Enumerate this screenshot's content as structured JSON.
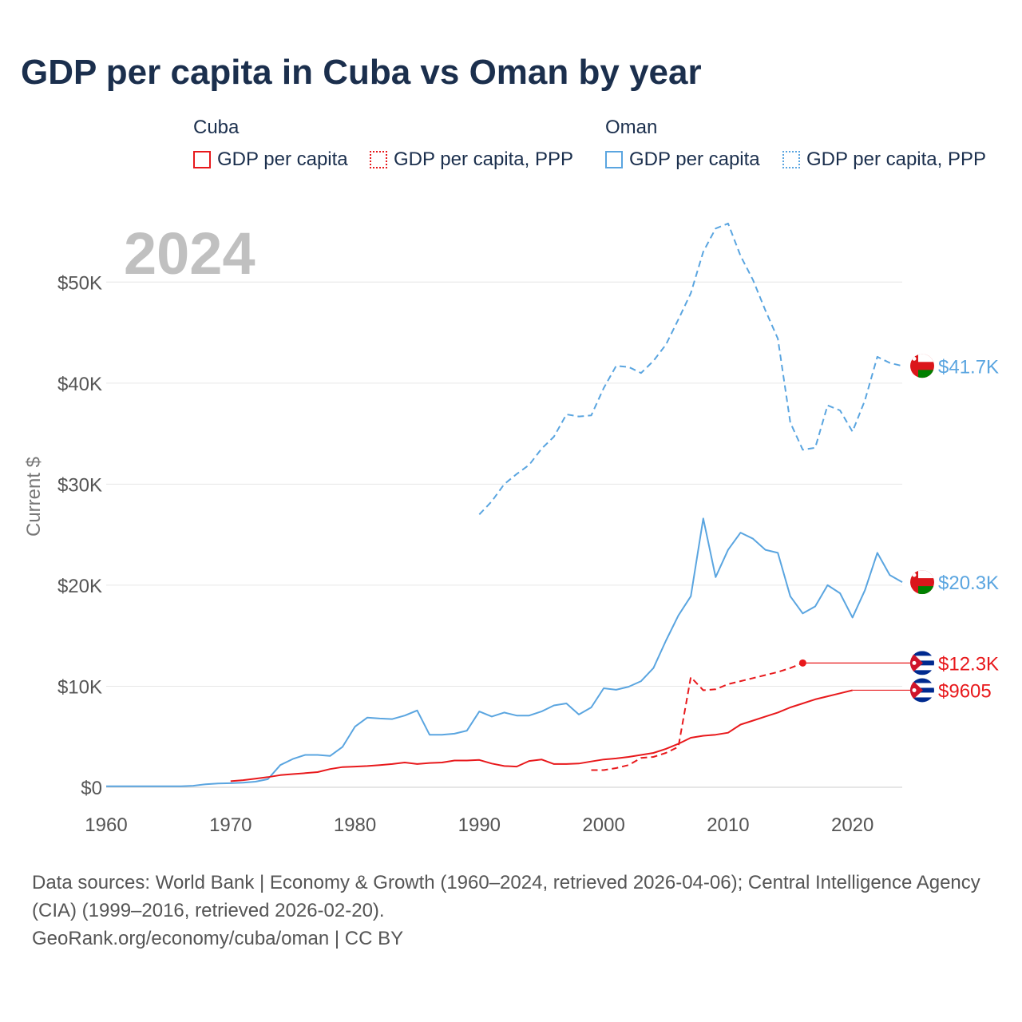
{
  "title": "GDP per capita in Cuba vs Oman by year",
  "legend": {
    "cuba_title": "Cuba",
    "oman_title": "Oman",
    "items": [
      {
        "label": "GDP per capita",
        "color": "#e8191c",
        "style": "solid"
      },
      {
        "label": "GDP per capita, PPP",
        "color": "#e8191c",
        "style": "dotted"
      },
      {
        "label": "GDP per capita",
        "color": "#5aa5e0",
        "style": "solid"
      },
      {
        "label": "GDP per capita, PPP",
        "color": "#5aa5e0",
        "style": "dotted"
      }
    ]
  },
  "chart_data": {
    "type": "line",
    "title": "GDP per capita in Cuba vs Oman by year",
    "year_label": "2024",
    "ylabel": "Current $",
    "xlim": [
      1960,
      2024
    ],
    "ylim": [
      0,
      55000
    ],
    "x_ticks": [
      1960,
      1970,
      1980,
      1990,
      2000,
      2010,
      2020
    ],
    "y_ticks": [
      {
        "value": 0,
        "label": "$0"
      },
      {
        "value": 10000,
        "label": "$10K"
      },
      {
        "value": 20000,
        "label": "$20K"
      },
      {
        "value": 30000,
        "label": "$30K"
      },
      {
        "value": 40000,
        "label": "$40K"
      },
      {
        "value": 50000,
        "label": "$50K"
      }
    ],
    "series": [
      {
        "name": "Oman GDP per capita, PPP",
        "country": "Oman",
        "color": "#5aa5e0",
        "dashed": true,
        "end_label": "$41.7K",
        "x": [
          1990,
          1991,
          1992,
          1993,
          1994,
          1995,
          1996,
          1997,
          1998,
          1999,
          2000,
          2001,
          2002,
          2003,
          2004,
          2005,
          2006,
          2007,
          2008,
          2009,
          2010,
          2011,
          2012,
          2013,
          2014,
          2015,
          2016,
          2017,
          2018,
          2019,
          2020,
          2021,
          2022,
          2023,
          2024
        ],
        "values": [
          27000,
          28300,
          30000,
          31000,
          31900,
          33500,
          34700,
          36900,
          36700,
          36800,
          39500,
          41700,
          41600,
          41000,
          42200,
          43800,
          46300,
          48900,
          53000,
          55300,
          55800,
          52600,
          50200,
          47200,
          44400,
          36100,
          33400,
          33600,
          37800,
          37300,
          35200,
          38300,
          42600,
          42000,
          41700
        ]
      },
      {
        "name": "Oman GDP per capita",
        "country": "Oman",
        "color": "#5aa5e0",
        "dashed": false,
        "end_label": "$20.3K",
        "x": [
          1960,
          1961,
          1962,
          1963,
          1964,
          1965,
          1966,
          1967,
          1968,
          1969,
          1970,
          1971,
          1972,
          1973,
          1974,
          1975,
          1976,
          1977,
          1978,
          1979,
          1980,
          1981,
          1982,
          1983,
          1984,
          1985,
          1986,
          1987,
          1988,
          1989,
          1990,
          1991,
          1992,
          1993,
          1994,
          1995,
          1996,
          1997,
          1998,
          1999,
          2000,
          2001,
          2002,
          2003,
          2004,
          2005,
          2006,
          2007,
          2008,
          2009,
          2010,
          2011,
          2012,
          2013,
          2014,
          2015,
          2016,
          2017,
          2018,
          2019,
          2020,
          2021,
          2022,
          2023,
          2024
        ],
        "values": [
          100,
          100,
          100,
          100,
          100,
          100,
          100,
          150,
          300,
          380,
          400,
          450,
          550,
          800,
          2200,
          2800,
          3200,
          3200,
          3100,
          4000,
          6000,
          6900,
          6800,
          6750,
          7100,
          7600,
          5200,
          5200,
          5300,
          5600,
          7500,
          7000,
          7400,
          7100,
          7100,
          7500,
          8100,
          8300,
          7200,
          7900,
          9800,
          9650,
          9950,
          10500,
          11800,
          14500,
          17000,
          18900,
          26600,
          20800,
          23500,
          25200,
          24600,
          23500,
          23200,
          18900,
          17200,
          17900,
          20000,
          19200,
          16800,
          19500,
          23200,
          21000,
          20300
        ]
      },
      {
        "name": "Cuba GDP per capita, PPP",
        "country": "Cuba",
        "color": "#e8191c",
        "dashed": true,
        "end_label": "$12.3K",
        "x": [
          1999,
          2000,
          2001,
          2002,
          2003,
          2004,
          2005,
          2006,
          2007,
          2008,
          2009,
          2010,
          2011,
          2012,
          2013,
          2014,
          2015,
          2016
        ],
        "values": [
          1700,
          1700,
          1900,
          2200,
          2900,
          3000,
          3400,
          4000,
          10900,
          9600,
          9700,
          10200,
          10500,
          10800,
          11100,
          11400,
          11800,
          12300
        ],
        "marker_last": true
      },
      {
        "name": "Cuba GDP per capita",
        "country": "Cuba",
        "color": "#e8191c",
        "dashed": false,
        "end_label": "$9605",
        "x": [
          1970,
          1971,
          1972,
          1973,
          1974,
          1975,
          1976,
          1977,
          1978,
          1979,
          1980,
          1981,
          1982,
          1983,
          1984,
          1985,
          1986,
          1987,
          1988,
          1989,
          1990,
          1991,
          1992,
          1993,
          1994,
          1995,
          1996,
          1997,
          1998,
          1999,
          2000,
          2001,
          2002,
          2003,
          2004,
          2005,
          2006,
          2007,
          2008,
          2009,
          2010,
          2011,
          2012,
          2013,
          2014,
          2015,
          2016,
          2017,
          2018,
          2019,
          2020
        ],
        "values": [
          600,
          700,
          850,
          1000,
          1200,
          1300,
          1400,
          1500,
          1800,
          2000,
          2050,
          2100,
          2200,
          2300,
          2450,
          2300,
          2400,
          2450,
          2650,
          2650,
          2700,
          2350,
          2100,
          2050,
          2600,
          2750,
          2300,
          2300,
          2350,
          2550,
          2750,
          2850,
          3000,
          3200,
          3400,
          3800,
          4300,
          4900,
          5100,
          5200,
          5400,
          6200,
          6600,
          7000,
          7400,
          7900,
          8300,
          8700,
          9000,
          9300,
          9605
        ]
      }
    ]
  },
  "footer": {
    "line1": "Data sources: World Bank | Economy & Growth (1960–2024, retrieved 2026-04-06); Central Intelligence Agency (CIA) (1999–2016, retrieved 2026-02-20).",
    "line2": "GeoRank.org/economy/cuba/oman | CC BY"
  },
  "flags": [
    {
      "name": "oman-flag-icon",
      "description": "Oman flag"
    },
    {
      "name": "cuba-flag-icon",
      "description": "Cuba flag"
    }
  ]
}
